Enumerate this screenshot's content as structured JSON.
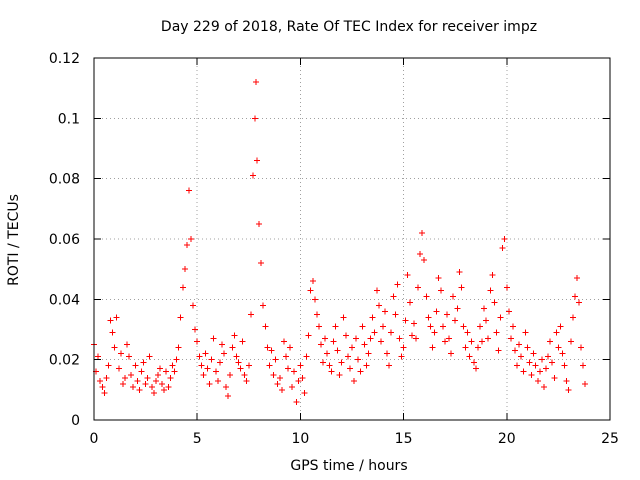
{
  "chart_data": {
    "type": "scatter",
    "title": "Day 229 of 2018, Rate Of TEC Index for receiver impz",
    "xlabel": "GPS time / hours",
    "ylabel": "ROTI / TECUs",
    "xlim": [
      0,
      25
    ],
    "ylim": [
      0,
      0.12
    ],
    "grid": true,
    "legend": "none",
    "x_ticks": [
      0,
      5,
      10,
      15,
      20,
      25
    ],
    "x_tick_labels": [
      "0",
      "5",
      "10",
      "15",
      "20",
      "25"
    ],
    "y_ticks": [
      0,
      0.02,
      0.04,
      0.06,
      0.08,
      0.1,
      0.12
    ],
    "y_tick_labels": [
      "0",
      "0.02",
      "0.04",
      "0.06",
      "0.08",
      "0.1",
      "0.12"
    ],
    "series": [
      {
        "name": "ROTI",
        "marker": "+",
        "color": "#ff0000",
        "points": [
          [
            0.0,
            0.025
          ],
          [
            0.1,
            0.016
          ],
          [
            0.2,
            0.021
          ],
          [
            0.3,
            0.013
          ],
          [
            0.4,
            0.011
          ],
          [
            0.5,
            0.009
          ],
          [
            0.6,
            0.014
          ],
          [
            0.7,
            0.018
          ],
          [
            0.8,
            0.033
          ],
          [
            0.9,
            0.029
          ],
          [
            1.0,
            0.024
          ],
          [
            1.1,
            0.034
          ],
          [
            1.2,
            0.017
          ],
          [
            1.3,
            0.022
          ],
          [
            1.4,
            0.012
          ],
          [
            1.5,
            0.014
          ],
          [
            1.6,
            0.025
          ],
          [
            1.7,
            0.021
          ],
          [
            1.8,
            0.015
          ],
          [
            1.9,
            0.011
          ],
          [
            2.0,
            0.018
          ],
          [
            2.1,
            0.013
          ],
          [
            2.2,
            0.01
          ],
          [
            2.3,
            0.016
          ],
          [
            2.4,
            0.019
          ],
          [
            2.5,
            0.012
          ],
          [
            2.6,
            0.014
          ],
          [
            2.7,
            0.021
          ],
          [
            2.8,
            0.011
          ],
          [
            2.9,
            0.009
          ],
          [
            3.0,
            0.013
          ],
          [
            3.1,
            0.015
          ],
          [
            3.2,
            0.017
          ],
          [
            3.3,
            0.012
          ],
          [
            3.4,
            0.01
          ],
          [
            3.5,
            0.016
          ],
          [
            3.6,
            0.011
          ],
          [
            3.7,
            0.014
          ],
          [
            3.8,
            0.018
          ],
          [
            3.9,
            0.016
          ],
          [
            4.0,
            0.02
          ],
          [
            4.1,
            0.024
          ],
          [
            4.2,
            0.034
          ],
          [
            4.3,
            0.044
          ],
          [
            4.4,
            0.05
          ],
          [
            4.5,
            0.058
          ],
          [
            4.6,
            0.076
          ],
          [
            4.7,
            0.06
          ],
          [
            4.8,
            0.038
          ],
          [
            4.9,
            0.03
          ],
          [
            5.0,
            0.026
          ],
          [
            5.1,
            0.021
          ],
          [
            5.2,
            0.018
          ],
          [
            5.3,
            0.015
          ],
          [
            5.4,
            0.022
          ],
          [
            5.5,
            0.017
          ],
          [
            5.6,
            0.012
          ],
          [
            5.7,
            0.02
          ],
          [
            5.8,
            0.027
          ],
          [
            5.9,
            0.016
          ],
          [
            6.0,
            0.013
          ],
          [
            6.1,
            0.019
          ],
          [
            6.2,
            0.025
          ],
          [
            6.3,
            0.022
          ],
          [
            6.4,
            0.011
          ],
          [
            6.5,
            0.008
          ],
          [
            6.6,
            0.015
          ],
          [
            6.7,
            0.024
          ],
          [
            6.8,
            0.028
          ],
          [
            6.9,
            0.021
          ],
          [
            7.0,
            0.019
          ],
          [
            7.1,
            0.017
          ],
          [
            7.2,
            0.026
          ],
          [
            7.3,
            0.015
          ],
          [
            7.4,
            0.013
          ],
          [
            7.5,
            0.018
          ],
          [
            7.6,
            0.035
          ],
          [
            7.7,
            0.081
          ],
          [
            7.8,
            0.1
          ],
          [
            7.85,
            0.112
          ],
          [
            7.9,
            0.086
          ],
          [
            8.0,
            0.065
          ],
          [
            8.1,
            0.052
          ],
          [
            8.2,
            0.038
          ],
          [
            8.3,
            0.031
          ],
          [
            8.4,
            0.024
          ],
          [
            8.5,
            0.018
          ],
          [
            8.6,
            0.023
          ],
          [
            8.7,
            0.015
          ],
          [
            8.8,
            0.02
          ],
          [
            8.9,
            0.012
          ],
          [
            9.0,
            0.014
          ],
          [
            9.1,
            0.01
          ],
          [
            9.2,
            0.026
          ],
          [
            9.3,
            0.021
          ],
          [
            9.4,
            0.017
          ],
          [
            9.5,
            0.024
          ],
          [
            9.6,
            0.011
          ],
          [
            9.7,
            0.016
          ],
          [
            9.8,
            0.006
          ],
          [
            9.9,
            0.013
          ],
          [
            10.0,
            0.018
          ],
          [
            10.1,
            0.014
          ],
          [
            10.2,
            0.009
          ],
          [
            10.3,
            0.021
          ],
          [
            10.4,
            0.028
          ],
          [
            10.5,
            0.043
          ],
          [
            10.6,
            0.046
          ],
          [
            10.7,
            0.04
          ],
          [
            10.8,
            0.035
          ],
          [
            10.9,
            0.031
          ],
          [
            11.0,
            0.025
          ],
          [
            11.1,
            0.019
          ],
          [
            11.2,
            0.027
          ],
          [
            11.3,
            0.022
          ],
          [
            11.4,
            0.018
          ],
          [
            11.5,
            0.016
          ],
          [
            11.6,
            0.026
          ],
          [
            11.7,
            0.031
          ],
          [
            11.8,
            0.023
          ],
          [
            11.9,
            0.015
          ],
          [
            12.0,
            0.019
          ],
          [
            12.1,
            0.034
          ],
          [
            12.2,
            0.028
          ],
          [
            12.3,
            0.021
          ],
          [
            12.4,
            0.017
          ],
          [
            12.5,
            0.024
          ],
          [
            12.6,
            0.013
          ],
          [
            12.7,
            0.027
          ],
          [
            12.8,
            0.02
          ],
          [
            12.9,
            0.016
          ],
          [
            13.0,
            0.031
          ],
          [
            13.1,
            0.025
          ],
          [
            13.2,
            0.018
          ],
          [
            13.3,
            0.022
          ],
          [
            13.4,
            0.027
          ],
          [
            13.5,
            0.034
          ],
          [
            13.6,
            0.029
          ],
          [
            13.7,
            0.043
          ],
          [
            13.8,
            0.038
          ],
          [
            13.9,
            0.026
          ],
          [
            14.0,
            0.031
          ],
          [
            14.1,
            0.036
          ],
          [
            14.2,
            0.022
          ],
          [
            14.3,
            0.018
          ],
          [
            14.4,
            0.029
          ],
          [
            14.5,
            0.041
          ],
          [
            14.6,
            0.035
          ],
          [
            14.7,
            0.045
          ],
          [
            14.8,
            0.027
          ],
          [
            14.9,
            0.021
          ],
          [
            15.0,
            0.024
          ],
          [
            15.1,
            0.033
          ],
          [
            15.2,
            0.048
          ],
          [
            15.3,
            0.039
          ],
          [
            15.4,
            0.028
          ],
          [
            15.5,
            0.032
          ],
          [
            15.6,
            0.027
          ],
          [
            15.7,
            0.044
          ],
          [
            15.8,
            0.055
          ],
          [
            15.9,
            0.062
          ],
          [
            16.0,
            0.053
          ],
          [
            16.1,
            0.041
          ],
          [
            16.2,
            0.034
          ],
          [
            16.3,
            0.031
          ],
          [
            16.4,
            0.024
          ],
          [
            16.5,
            0.029
          ],
          [
            16.6,
            0.036
          ],
          [
            16.7,
            0.047
          ],
          [
            16.8,
            0.043
          ],
          [
            16.9,
            0.031
          ],
          [
            17.0,
            0.026
          ],
          [
            17.1,
            0.035
          ],
          [
            17.2,
            0.027
          ],
          [
            17.3,
            0.022
          ],
          [
            17.4,
            0.041
          ],
          [
            17.5,
            0.033
          ],
          [
            17.6,
            0.037
          ],
          [
            17.7,
            0.049
          ],
          [
            17.8,
            0.044
          ],
          [
            17.9,
            0.031
          ],
          [
            18.0,
            0.024
          ],
          [
            18.1,
            0.029
          ],
          [
            18.2,
            0.021
          ],
          [
            18.3,
            0.026
          ],
          [
            18.4,
            0.019
          ],
          [
            18.5,
            0.017
          ],
          [
            18.6,
            0.024
          ],
          [
            18.7,
            0.031
          ],
          [
            18.8,
            0.026
          ],
          [
            18.9,
            0.037
          ],
          [
            19.0,
            0.033
          ],
          [
            19.1,
            0.027
          ],
          [
            19.2,
            0.043
          ],
          [
            19.3,
            0.048
          ],
          [
            19.4,
            0.039
          ],
          [
            19.5,
            0.029
          ],
          [
            19.6,
            0.023
          ],
          [
            19.7,
            0.034
          ],
          [
            19.8,
            0.057
          ],
          [
            19.9,
            0.06
          ],
          [
            20.0,
            0.044
          ],
          [
            20.1,
            0.036
          ],
          [
            20.2,
            0.027
          ],
          [
            20.3,
            0.031
          ],
          [
            20.4,
            0.023
          ],
          [
            20.5,
            0.018
          ],
          [
            20.6,
            0.025
          ],
          [
            20.7,
            0.021
          ],
          [
            20.8,
            0.016
          ],
          [
            20.9,
            0.029
          ],
          [
            21.0,
            0.024
          ],
          [
            21.1,
            0.019
          ],
          [
            21.2,
            0.015
          ],
          [
            21.3,
            0.022
          ],
          [
            21.4,
            0.018
          ],
          [
            21.5,
            0.013
          ],
          [
            21.6,
            0.016
          ],
          [
            21.7,
            0.02
          ],
          [
            21.8,
            0.011
          ],
          [
            21.9,
            0.017
          ],
          [
            22.0,
            0.021
          ],
          [
            22.1,
            0.026
          ],
          [
            22.2,
            0.019
          ],
          [
            22.3,
            0.014
          ],
          [
            22.4,
            0.029
          ],
          [
            22.5,
            0.024
          ],
          [
            22.6,
            0.031
          ],
          [
            22.7,
            0.022
          ],
          [
            22.8,
            0.018
          ],
          [
            22.9,
            0.013
          ],
          [
            23.0,
            0.01
          ],
          [
            23.1,
            0.026
          ],
          [
            23.2,
            0.034
          ],
          [
            23.3,
            0.041
          ],
          [
            23.4,
            0.047
          ],
          [
            23.5,
            0.039
          ],
          [
            23.6,
            0.024
          ],
          [
            23.7,
            0.018
          ],
          [
            23.8,
            0.012
          ]
        ]
      }
    ]
  }
}
